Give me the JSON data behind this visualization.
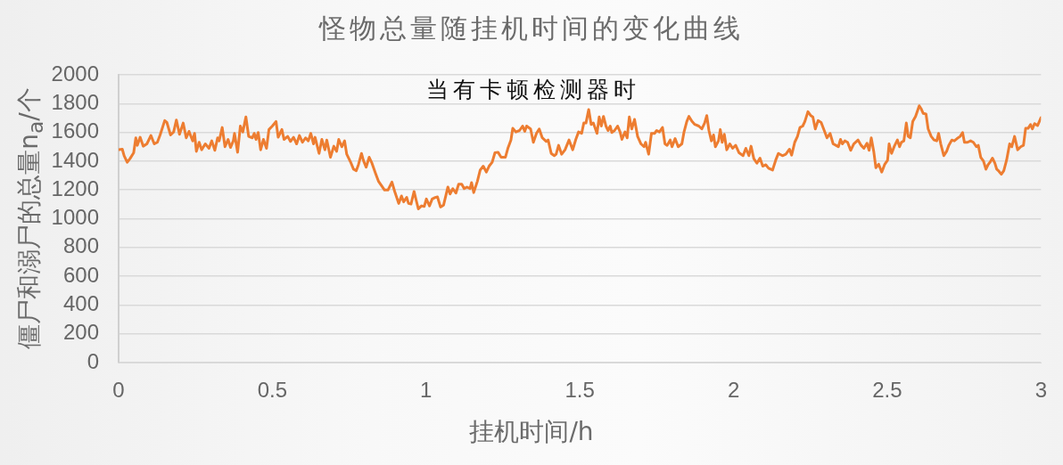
{
  "chart_data": {
    "type": "line",
    "title": "怪物总量随挂机时间的变化曲线",
    "xlabel": "挂机时间/h",
    "ylabel": "僵尸和溺尸的总量n$_{a}$/个",
    "annotations": [
      "当有卡顿检测器时"
    ],
    "x": [
      0,
      0.012,
      0.018,
      0.028,
      0.037,
      0.049,
      0.056,
      0.061,
      0.07,
      0.08,
      0.092,
      0.105,
      0.116,
      0.126,
      0.135,
      0.15,
      0.157,
      0.169,
      0.179,
      0.188,
      0.198,
      0.21,
      0.22,
      0.229,
      0.241,
      0.247,
      0.253,
      0.262,
      0.27,
      0.282,
      0.294,
      0.303,
      0.313,
      0.322,
      0.327,
      0.337,
      0.346,
      0.356,
      0.364,
      0.373,
      0.377,
      0.387,
      0.396,
      0.404,
      0.414,
      0.423,
      0.435,
      0.441,
      0.447,
      0.454,
      0.462,
      0.471,
      0.481,
      0.489,
      0.5,
      0.512,
      0.519,
      0.531,
      0.538,
      0.55,
      0.559,
      0.569,
      0.579,
      0.588,
      0.598,
      0.608,
      0.617,
      0.625,
      0.634,
      0.639,
      0.652,
      0.661,
      0.671,
      0.677,
      0.689,
      0.7,
      0.709,
      0.716,
      0.726,
      0.735,
      0.742,
      0.754,
      0.764,
      0.773,
      0.78,
      0.79,
      0.796,
      0.805,
      0.815,
      0.824,
      0.836,
      0.845,
      0.855,
      0.865,
      0.876,
      0.889,
      0.898,
      0.911,
      0.92,
      0.927,
      0.937,
      0.943,
      0.951,
      0.961,
      0.968,
      0.975,
      0.985,
      0.994,
      1.001,
      1.011,
      1.02,
      1.03,
      1.037,
      1.047,
      1.057,
      1.071,
      1.078,
      1.087,
      1.097,
      1.106,
      1.116,
      1.124,
      1.133,
      1.143,
      1.148,
      1.155,
      1.167,
      1.176,
      1.186,
      1.196,
      1.205,
      1.215,
      1.224,
      1.234,
      1.244,
      1.258,
      1.266,
      1.276,
      1.282,
      1.292,
      1.304,
      1.314,
      1.321,
      1.327,
      1.34,
      1.349,
      1.359,
      1.368,
      1.378,
      1.391,
      1.397,
      1.407,
      1.417,
      1.423,
      1.431,
      1.441,
      1.452,
      1.465,
      1.477,
      1.487,
      1.496,
      1.506,
      1.513,
      1.52,
      1.529,
      1.537,
      1.544,
      1.556,
      1.563,
      1.57,
      1.577,
      1.585,
      1.592,
      1.599,
      1.604,
      1.613,
      1.623,
      1.631,
      1.637,
      1.647,
      1.654,
      1.661,
      1.669,
      1.678,
      1.688,
      1.699,
      1.709,
      1.714,
      1.724,
      1.733,
      1.743,
      1.75,
      1.759,
      1.769,
      1.777,
      1.784,
      1.794,
      1.8,
      1.81,
      1.82,
      1.832,
      1.839,
      1.848,
      1.855,
      1.865,
      1.874,
      1.887,
      1.897,
      1.906,
      1.913,
      1.92,
      1.928,
      1.935,
      1.941,
      1.951,
      1.957,
      1.963,
      1.97,
      1.978,
      1.988,
      1.997,
      2.007,
      2.018,
      2.031,
      2.04,
      2.05,
      2.057,
      2.066,
      2.076,
      2.086,
      2.095,
      2.105,
      2.114,
      2.127,
      2.137,
      2.146,
      2.159,
      2.17,
      2.182,
      2.189,
      2.199,
      2.208,
      2.216,
      2.225,
      2.232,
      2.242,
      2.251,
      2.258,
      2.266,
      2.275,
      2.285,
      2.295,
      2.304,
      2.314,
      2.324,
      2.333,
      2.341,
      2.348,
      2.354,
      2.362,
      2.371,
      2.381,
      2.391,
      2.405,
      2.415,
      2.424,
      2.434,
      2.441,
      2.448,
      2.456,
      2.463,
      2.472,
      2.482,
      2.492,
      2.501,
      2.506,
      2.514,
      2.523,
      2.533,
      2.54,
      2.546,
      2.554,
      2.562,
      2.568,
      2.575,
      2.583,
      2.592,
      2.604,
      2.61,
      2.617,
      2.626,
      2.633,
      2.643,
      2.652,
      2.661,
      2.667,
      2.674,
      2.684,
      2.693,
      2.7,
      2.71,
      2.718,
      2.727,
      2.737,
      2.745,
      2.751,
      2.761,
      2.771,
      2.78,
      2.79,
      2.796,
      2.804,
      2.813,
      2.821,
      2.828,
      2.834,
      2.842,
      2.85,
      2.856,
      2.863,
      2.871,
      2.879,
      2.888,
      2.898,
      2.905,
      2.914,
      2.924,
      2.934,
      2.943,
      2.95,
      2.958,
      2.966,
      2.972,
      2.979,
      2.989,
      3.0
    ],
    "values": [
      1479,
      1483,
      1437,
      1392,
      1417,
      1458,
      1562,
      1510,
      1566,
      1504,
      1520,
      1578,
      1520,
      1531,
      1582,
      1682,
      1669,
      1582,
      1603,
      1686,
      1587,
      1665,
      1562,
      1607,
      1541,
      1593,
      1468,
      1531,
      1479,
      1520,
      1489,
      1541,
      1475,
      1562,
      1541,
      1634,
      1500,
      1551,
      1495,
      1541,
      1593,
      1462,
      1644,
      1603,
      1707,
      1572,
      1562,
      1593,
      1551,
      1599,
      1479,
      1551,
      1489,
      1620,
      1644,
      1676,
      1566,
      1620,
      1551,
      1572,
      1537,
      1566,
      1520,
      1578,
      1531,
      1562,
      1541,
      1593,
      1520,
      1566,
      1454,
      1551,
      1479,
      1547,
      1427,
      1504,
      1468,
      1551,
      1500,
      1541,
      1448,
      1396,
      1344,
      1334,
      1375,
      1454,
      1406,
      1358,
      1427,
      1386,
      1313,
      1261,
      1230,
      1199,
      1199,
      1255,
      1189,
      1106,
      1158,
      1117,
      1148,
      1106,
      1102,
      1189,
      1127,
      1068,
      1089,
      1085,
      1137,
      1089,
      1137,
      1148,
      1152,
      1081,
      1095,
      1220,
      1172,
      1209,
      1178,
      1240,
      1240,
      1209,
      1220,
      1209,
      1251,
      1182,
      1261,
      1338,
      1365,
      1324,
      1365,
      1392,
      1458,
      1462,
      1427,
      1427,
      1489,
      1547,
      1629,
      1603,
      1613,
      1644,
      1607,
      1644,
      1624,
      1531,
      1593,
      1624,
      1562,
      1537,
      1547,
      1454,
      1438,
      1448,
      1510,
      1448,
      1479,
      1547,
      1479,
      1551,
      1603,
      1593,
      1665,
      1665,
      1759,
      1655,
      1665,
      1593,
      1707,
      1644,
      1711,
      1644,
      1613,
      1644,
      1599,
      1613,
      1644,
      1603,
      1551,
      1603,
      1562,
      1707,
      1624,
      1690,
      1572,
      1520,
      1500,
      1531,
      1448,
      1593,
      1593,
      1613,
      1603,
      1634,
      1520,
      1510,
      1547,
      1500,
      1557,
      1500,
      1520,
      1603,
      1676,
      1711,
      1676,
      1655,
      1644,
      1624,
      1665,
      1717,
      1613,
      1541,
      1582,
      1500,
      1541,
      1620,
      1531,
      1587,
      1479,
      1520,
      1489,
      1510,
      1458,
      1438,
      1489,
      1438,
      1504,
      1417,
      1386,
      1421,
      1365,
      1375,
      1351,
      1338,
      1406,
      1454,
      1438,
      1448,
      1483,
      1442,
      1531,
      1572,
      1634,
      1644,
      1676,
      1744,
      1717,
      1707,
      1624,
      1682,
      1669,
      1613,
      1562,
      1593,
      1520,
      1510,
      1500,
      1551,
      1520,
      1541,
      1531,
      1475,
      1520,
      1547,
      1510,
      1489,
      1524,
      1475,
      1562,
      1468,
      1354,
      1379,
      1324,
      1379,
      1406,
      1520,
      1454,
      1504,
      1547,
      1500,
      1531,
      1541,
      1665,
      1572,
      1562,
      1676,
      1711,
      1785,
      1765,
      1732,
      1728,
      1624,
      1572,
      1547,
      1541,
      1593,
      1520,
      1438,
      1468,
      1510,
      1547,
      1541,
      1557,
      1572,
      1599,
      1531,
      1531,
      1541,
      1531,
      1500,
      1510,
      1427,
      1400,
      1344,
      1375,
      1392,
      1421,
      1386,
      1344,
      1330,
      1309,
      1334,
      1406,
      1520,
      1500,
      1572,
      1479,
      1500,
      1510,
      1628,
      1628,
      1655,
      1624,
      1661,
      1648,
      1703
    ],
    "color": "#ed7d31",
    "marker": "none",
    "xlim": [
      0,
      3
    ],
    "xticks": [
      0,
      0.5,
      1,
      1.5,
      2,
      2.5,
      3
    ],
    "ylim": [
      0,
      2000
    ],
    "yticks": [
      0,
      200,
      400,
      600,
      800,
      1000,
      1200,
      1400,
      1600,
      1800,
      2000
    ],
    "grid": "y"
  }
}
